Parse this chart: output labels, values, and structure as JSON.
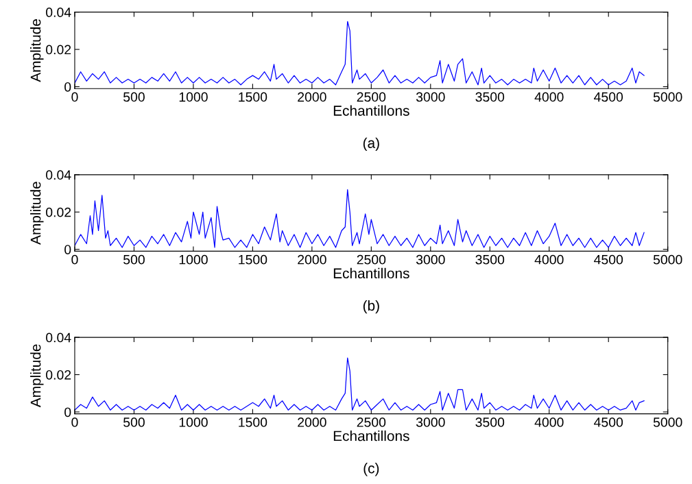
{
  "chart_data": [
    {
      "type": "line",
      "title": "(a)",
      "xlabel": "Echantillons",
      "ylabel": "Amplitude",
      "xlim": [
        0,
        5000
      ],
      "ylim": [
        -0.001,
        0.04
      ],
      "xticks": [
        0,
        500,
        1000,
        1500,
        2000,
        2500,
        3000,
        3500,
        4000,
        4500,
        5000
      ],
      "yticks": [
        0,
        0.02,
        0.04
      ],
      "series": [
        {
          "color": "#0000ff",
          "x": [
            0,
            50,
            100,
            150,
            200,
            250,
            300,
            350,
            400,
            450,
            500,
            550,
            600,
            650,
            700,
            750,
            800,
            850,
            900,
            950,
            1000,
            1050,
            1100,
            1150,
            1200,
            1250,
            1300,
            1350,
            1400,
            1450,
            1500,
            1550,
            1600,
            1650,
            1680,
            1700,
            1750,
            1800,
            1850,
            1900,
            1950,
            2000,
            2050,
            2100,
            2150,
            2200,
            2250,
            2280,
            2300,
            2320,
            2340,
            2380,
            2400,
            2450,
            2500,
            2550,
            2600,
            2650,
            2700,
            2750,
            2800,
            2850,
            2900,
            2950,
            3000,
            3050,
            3080,
            3100,
            3150,
            3200,
            3230,
            3270,
            3300,
            3350,
            3400,
            3430,
            3450,
            3500,
            3550,
            3600,
            3650,
            3700,
            3750,
            3800,
            3850,
            3870,
            3900,
            3950,
            4000,
            4050,
            4100,
            4150,
            4200,
            4250,
            4300,
            4350,
            4400,
            4450,
            4500,
            4550,
            4600,
            4650,
            4700,
            4730,
            4760,
            4800
          ],
          "values": [
            0.002,
            0.008,
            0.003,
            0.007,
            0.004,
            0.008,
            0.002,
            0.005,
            0.002,
            0.004,
            0.002,
            0.004,
            0.002,
            0.005,
            0.003,
            0.007,
            0.003,
            0.008,
            0.002,
            0.005,
            0.002,
            0.005,
            0.002,
            0.004,
            0.002,
            0.005,
            0.002,
            0.004,
            0.001,
            0.004,
            0.006,
            0.004,
            0.008,
            0.003,
            0.012,
            0.004,
            0.007,
            0.002,
            0.006,
            0.002,
            0.004,
            0.002,
            0.005,
            0.002,
            0.004,
            0.001,
            0.008,
            0.012,
            0.035,
            0.03,
            0.002,
            0.009,
            0.004,
            0.007,
            0.002,
            0.005,
            0.009,
            0.002,
            0.006,
            0.002,
            0.004,
            0.002,
            0.005,
            0.002,
            0.005,
            0.006,
            0.014,
            0.002,
            0.012,
            0.003,
            0.012,
            0.015,
            0.002,
            0.008,
            0.001,
            0.01,
            0.002,
            0.006,
            0.002,
            0.004,
            0.001,
            0.004,
            0.002,
            0.004,
            0.002,
            0.01,
            0.003,
            0.009,
            0.003,
            0.01,
            0.002,
            0.006,
            0.002,
            0.006,
            0.001,
            0.005,
            0.001,
            0.004,
            0.001,
            0.003,
            0.001,
            0.003,
            0.01,
            0.002,
            0.008,
            0.006
          ]
        }
      ]
    },
    {
      "type": "line",
      "title": "(b)",
      "xlabel": "Echantillons",
      "ylabel": "Amplitude",
      "xlim": [
        0,
        5000
      ],
      "ylim": [
        -0.001,
        0.04
      ],
      "xticks": [
        0,
        500,
        1000,
        1500,
        2000,
        2500,
        3000,
        3500,
        4000,
        4500,
        5000
      ],
      "yticks": [
        0,
        0.02,
        0.04
      ],
      "series": [
        {
          "color": "#0000ff",
          "x": [
            0,
            50,
            100,
            130,
            150,
            170,
            200,
            230,
            260,
            280,
            300,
            350,
            400,
            450,
            500,
            550,
            600,
            650,
            700,
            750,
            800,
            850,
            900,
            950,
            980,
            1000,
            1050,
            1080,
            1100,
            1150,
            1180,
            1200,
            1230,
            1250,
            1300,
            1350,
            1400,
            1450,
            1500,
            1550,
            1600,
            1650,
            1700,
            1730,
            1750,
            1800,
            1850,
            1900,
            1950,
            2000,
            2050,
            2100,
            2150,
            2200,
            2250,
            2280,
            2300,
            2320,
            2340,
            2380,
            2400,
            2450,
            2480,
            2500,
            2550,
            2600,
            2650,
            2700,
            2750,
            2800,
            2850,
            2900,
            2950,
            3000,
            3050,
            3080,
            3100,
            3150,
            3200,
            3230,
            3270,
            3300,
            3350,
            3400,
            3450,
            3500,
            3550,
            3600,
            3650,
            3700,
            3750,
            3800,
            3850,
            3900,
            3950,
            4000,
            4050,
            4100,
            4150,
            4200,
            4250,
            4300,
            4350,
            4400,
            4450,
            4500,
            4550,
            4600,
            4650,
            4700,
            4730,
            4760,
            4800
          ],
          "values": [
            0.002,
            0.008,
            0.003,
            0.018,
            0.008,
            0.026,
            0.01,
            0.029,
            0.006,
            0.01,
            0.002,
            0.006,
            0.001,
            0.007,
            0.002,
            0.005,
            0.001,
            0.007,
            0.003,
            0.008,
            0.002,
            0.009,
            0.004,
            0.015,
            0.006,
            0.02,
            0.008,
            0.02,
            0.006,
            0.017,
            0.001,
            0.023,
            0.01,
            0.005,
            0.006,
            0.001,
            0.005,
            0.001,
            0.008,
            0.003,
            0.012,
            0.005,
            0.019,
            0.004,
            0.01,
            0.002,
            0.008,
            0.001,
            0.009,
            0.003,
            0.008,
            0.002,
            0.007,
            0.001,
            0.01,
            0.012,
            0.032,
            0.02,
            0.002,
            0.009,
            0.003,
            0.019,
            0.008,
            0.016,
            0.003,
            0.008,
            0.002,
            0.007,
            0.002,
            0.006,
            0.001,
            0.008,
            0.002,
            0.006,
            0.003,
            0.013,
            0.003,
            0.01,
            0.002,
            0.016,
            0.004,
            0.01,
            0.002,
            0.008,
            0.001,
            0.007,
            0.002,
            0.006,
            0.001,
            0.006,
            0.002,
            0.009,
            0.002,
            0.01,
            0.003,
            0.007,
            0.014,
            0.002,
            0.008,
            0.002,
            0.006,
            0.001,
            0.006,
            0.001,
            0.005,
            0.001,
            0.007,
            0.002,
            0.006,
            0.002,
            0.009,
            0.002,
            0.009
          ]
        }
      ]
    },
    {
      "type": "line",
      "title": "(c)",
      "xlabel": "Echantillons",
      "ylabel": "Amplitude",
      "xlim": [
        0,
        5000
      ],
      "ylim": [
        -0.001,
        0.04
      ],
      "xticks": [
        0,
        500,
        1000,
        1500,
        2000,
        2500,
        3000,
        3500,
        4000,
        4500,
        5000
      ],
      "yticks": [
        0,
        0.02,
        0.04
      ],
      "series": [
        {
          "color": "#0000ff",
          "x": [
            0,
            50,
            100,
            150,
            200,
            250,
            300,
            350,
            400,
            450,
            500,
            550,
            600,
            650,
            700,
            750,
            800,
            850,
            900,
            950,
            1000,
            1050,
            1100,
            1150,
            1200,
            1250,
            1300,
            1350,
            1400,
            1450,
            1500,
            1550,
            1600,
            1650,
            1680,
            1700,
            1750,
            1800,
            1850,
            1900,
            1950,
            2000,
            2050,
            2100,
            2150,
            2200,
            2250,
            2280,
            2300,
            2320,
            2340,
            2380,
            2400,
            2450,
            2500,
            2550,
            2600,
            2650,
            2700,
            2750,
            2800,
            2850,
            2900,
            2950,
            3000,
            3050,
            3080,
            3100,
            3150,
            3200,
            3230,
            3270,
            3300,
            3350,
            3400,
            3430,
            3450,
            3500,
            3550,
            3600,
            3650,
            3700,
            3750,
            3800,
            3850,
            3870,
            3900,
            3950,
            4000,
            4050,
            4100,
            4150,
            4200,
            4250,
            4300,
            4350,
            4400,
            4450,
            4500,
            4550,
            4600,
            4650,
            4700,
            4730,
            4760,
            4800
          ],
          "values": [
            0.001,
            0.004,
            0.002,
            0.008,
            0.003,
            0.006,
            0.001,
            0.004,
            0.001,
            0.003,
            0.001,
            0.003,
            0.001,
            0.004,
            0.002,
            0.005,
            0.002,
            0.009,
            0.001,
            0.004,
            0.001,
            0.004,
            0.001,
            0.003,
            0.001,
            0.003,
            0.001,
            0.003,
            0.001,
            0.003,
            0.005,
            0.003,
            0.007,
            0.002,
            0.009,
            0.003,
            0.006,
            0.001,
            0.004,
            0.001,
            0.003,
            0.001,
            0.004,
            0.001,
            0.003,
            0.001,
            0.007,
            0.01,
            0.029,
            0.022,
            0.001,
            0.007,
            0.003,
            0.006,
            0.001,
            0.004,
            0.007,
            0.001,
            0.005,
            0.001,
            0.003,
            0.001,
            0.004,
            0.001,
            0.004,
            0.005,
            0.011,
            0.001,
            0.01,
            0.002,
            0.012,
            0.012,
            0.001,
            0.007,
            0.001,
            0.01,
            0.002,
            0.005,
            0.001,
            0.003,
            0.001,
            0.003,
            0.001,
            0.004,
            0.002,
            0.009,
            0.002,
            0.007,
            0.002,
            0.009,
            0.001,
            0.006,
            0.001,
            0.005,
            0.001,
            0.004,
            0.001,
            0.003,
            0.001,
            0.003,
            0.001,
            0.002,
            0.006,
            0.001,
            0.005,
            0.006
          ]
        }
      ]
    }
  ]
}
